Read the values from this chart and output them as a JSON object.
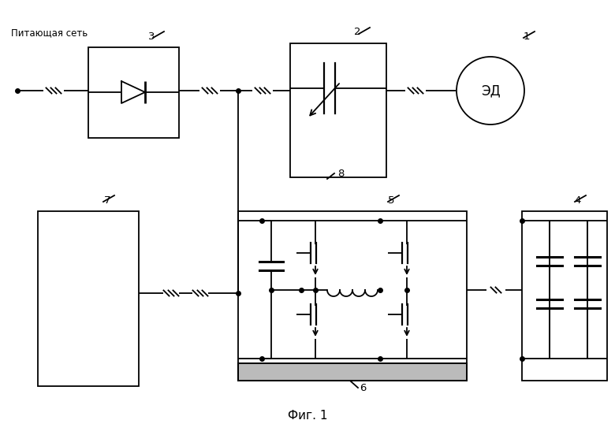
{
  "title": "Фиг. 1",
  "background_color": "#ffffff",
  "line_color": "#000000",
  "text_color": "#000000",
  "питающая_сеть": "Питающая сеть",
  "эд": "ЭД",
  "фиг": "Фиг. 1"
}
